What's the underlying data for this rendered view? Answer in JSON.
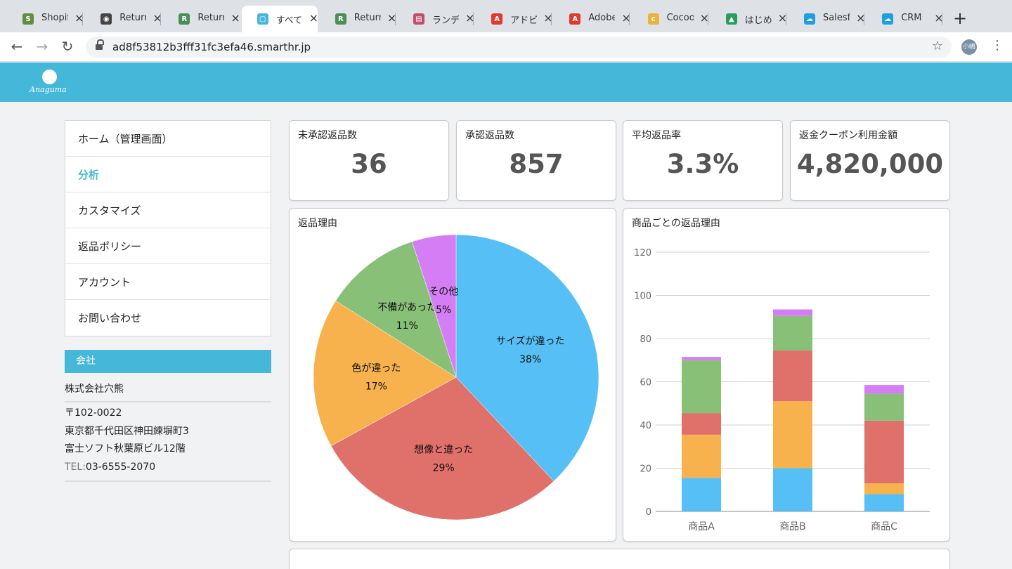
{
  "browser": {
    "tabs": [
      {
        "label": "Shopify",
        "favicon": "shopify-icon",
        "color": "#5e8e3e",
        "glyph": "S"
      },
      {
        "label": "Returns",
        "favicon": "globe-icon",
        "color": "#444444",
        "glyph": "◉"
      },
      {
        "label": "Returns",
        "favicon": "returns-app-icon",
        "color": "#4a8f5a",
        "glyph": "R"
      },
      {
        "label": "すべて",
        "favicon": "smarthr-icon",
        "color": "#45b7d8",
        "glyph": "▢",
        "active": true
      },
      {
        "label": "Returns",
        "favicon": "returns-app-icon",
        "color": "#4a8f5a",
        "glyph": "R"
      },
      {
        "label": "ランデ",
        "favicon": "gift-icon",
        "color": "#c0506a",
        "glyph": "▤"
      },
      {
        "label": "アドビ",
        "favicon": "adobe-icon",
        "color": "#e03a2f",
        "glyph": "A"
      },
      {
        "label": "Adobe",
        "favicon": "adobe-icon",
        "color": "#e03a2f",
        "glyph": "A"
      },
      {
        "label": "Cocoo",
        "favicon": "cocoon-icon",
        "color": "#e8b43a",
        "glyph": "c"
      },
      {
        "label": "はじめ",
        "favicon": "drive-icon",
        "color": "#2a9d5c",
        "glyph": "▲"
      },
      {
        "label": "Salesf",
        "favicon": "salesforce-icon",
        "color": "#1ea0e0",
        "glyph": "☁"
      },
      {
        "label": "CRM",
        "favicon": "salesforce-icon",
        "color": "#1ea0e0",
        "glyph": "☁"
      }
    ],
    "url": "ad8f53812b3fff31fc3efa46.smarthr.jp",
    "profile_initials": "小嶋"
  },
  "app": {
    "logo_text": "Anaguma",
    "brand_color": "#45b7d8"
  },
  "sidebar": {
    "items": [
      {
        "label": "ホーム（管理画面）",
        "active": false
      },
      {
        "label": "分析",
        "active": true
      },
      {
        "label": "カスタマイズ",
        "active": false
      },
      {
        "label": "返品ポリシー",
        "active": false
      },
      {
        "label": "アカウント",
        "active": false
      },
      {
        "label": "お問い合わせ",
        "active": false
      }
    ]
  },
  "company": {
    "heading": "会社",
    "name": "株式会社穴熊",
    "postal": "〒102-0022",
    "address1": "東京都千代田区神田練塀町3",
    "address2": "富士ソフト秋葉原ビル12階",
    "tel_label": "TEL:",
    "tel": "03-6555-2070"
  },
  "kpis": [
    {
      "label": "未承認返品数",
      "value": "36"
    },
    {
      "label": "承認返品数",
      "value": "857"
    },
    {
      "label": "平均返品率",
      "value": "3.3%"
    },
    {
      "label": "返金クーポン利用金額",
      "value": "4,820,000"
    }
  ],
  "chart_data": [
    {
      "type": "pie",
      "title": "返品理由",
      "slices": [
        {
          "label": "サイズが違った",
          "value": 38,
          "display": "38%",
          "color": "#56bff5"
        },
        {
          "label": "想像と違った",
          "value": 29,
          "display": "29%",
          "color": "#e0706a"
        },
        {
          "label": "色が違った",
          "value": 17,
          "display": "17%",
          "color": "#f7b24e"
        },
        {
          "label": "不備があった",
          "value": 11,
          "display": "11%",
          "color": "#88c077"
        },
        {
          "label": "その他",
          "value": 5,
          "display": "5%",
          "color": "#d57df5"
        }
      ]
    },
    {
      "type": "bar",
      "stacked": true,
      "title": "商品ごとの返品理由",
      "categories": [
        "商品A",
        "商品B",
        "商品C"
      ],
      "ylim": [
        0,
        120
      ],
      "yticks": [
        "0",
        "20",
        "40",
        "60",
        "80",
        "100",
        "120"
      ],
      "grid": true,
      "series": [
        {
          "values": [
            15.5,
            20,
            8
          ],
          "color": "#56bff5"
        },
        {
          "values": [
            20,
            31,
            5
          ],
          "color": "#f7b24e"
        },
        {
          "values": [
            10,
            23.5,
            29
          ],
          "color": "#e0706a"
        },
        {
          "values": [
            24.5,
            16,
            12.5
          ],
          "color": "#88c077"
        },
        {
          "values": [
            1.5,
            3,
            4
          ],
          "color": "#d57df5"
        }
      ]
    }
  ]
}
